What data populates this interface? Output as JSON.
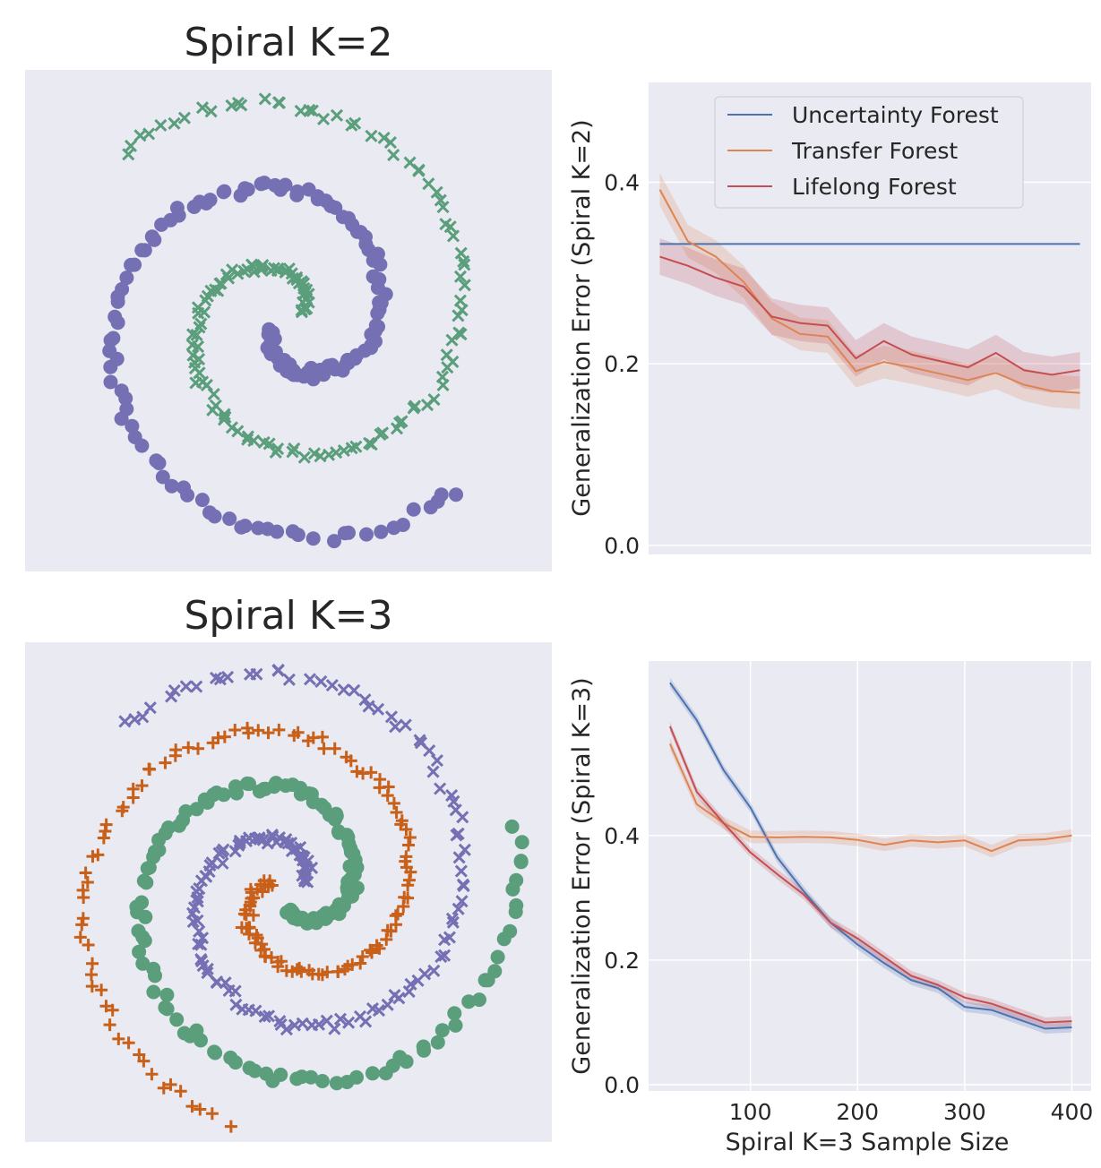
{
  "colors": {
    "panel_bg": "#EAEAF2",
    "grid": "#FFFFFF",
    "purple": "#7570B3",
    "green": "#5A9E7C",
    "orange": "#C8601A",
    "uncertainty": "#4C72B0",
    "transfer": "#DD8452",
    "lifelong": "#C44E52"
  },
  "chart_data": [
    {
      "type": "scatter",
      "title": "Spiral K=2",
      "xlabel": "",
      "ylabel": "",
      "grid": false,
      "series": [
        {
          "marker": "circle",
          "color_key": "purple",
          "arms": 1,
          "phase_deg": 180
        },
        {
          "marker": "x",
          "color_key": "green",
          "arms": 1,
          "phase_deg": 0
        }
      ]
    },
    {
      "type": "line",
      "xlabel": "",
      "ylabel": "Generalization Error (Spiral K=2)",
      "yticks": [
        0.0,
        0.2,
        0.4
      ],
      "ylim": [
        -0.01,
        0.51
      ],
      "xlim": [
        15,
        410
      ],
      "legend": {
        "placement": "top-center",
        "labels": [
          "Uncertainty Forest",
          "Transfer Forest",
          "Lifelong Forest"
        ]
      },
      "x": [
        25,
        50,
        75,
        100,
        125,
        150,
        175,
        200,
        225,
        250,
        275,
        300,
        325,
        350,
        375,
        400
      ],
      "series": [
        {
          "name": "Uncertainty Forest",
          "color_key": "uncertainty",
          "values": [
            0.332,
            0.332,
            0.332,
            0.332,
            0.332,
            0.332,
            0.332,
            0.332,
            0.332,
            0.332,
            0.332,
            0.332,
            0.332,
            0.332,
            0.332,
            0.332
          ],
          "band": 0.0
        },
        {
          "name": "Transfer Forest",
          "color_key": "transfer",
          "values": [
            0.392,
            0.335,
            0.318,
            0.29,
            0.25,
            0.233,
            0.23,
            0.192,
            0.202,
            0.196,
            0.189,
            0.182,
            0.19,
            0.177,
            0.17,
            0.168
          ],
          "band": 0.018
        },
        {
          "name": "Lifelong Forest",
          "color_key": "lifelong",
          "values": [
            0.318,
            0.308,
            0.295,
            0.285,
            0.252,
            0.245,
            0.242,
            0.206,
            0.225,
            0.21,
            0.203,
            0.196,
            0.212,
            0.193,
            0.188,
            0.193
          ],
          "band": 0.02
        }
      ]
    },
    {
      "type": "scatter",
      "title": "Spiral K=3",
      "xlabel": "",
      "ylabel": "",
      "grid": false,
      "series": [
        {
          "marker": "circle",
          "color_key": "green",
          "arms": 1,
          "phase_deg": 120
        },
        {
          "marker": "plus",
          "color_key": "orange",
          "arms": 1,
          "phase_deg": 240
        },
        {
          "marker": "x",
          "color_key": "purple",
          "arms": 1,
          "phase_deg": 0
        }
      ]
    },
    {
      "type": "line",
      "xlabel": "Spiral K=3 Sample Size",
      "ylabel": "Generalization Error (Spiral K=3)",
      "xticks": [
        100,
        200,
        300,
        400
      ],
      "yticks": [
        0.0,
        0.2,
        0.4
      ],
      "ylim": [
        -0.01,
        0.68
      ],
      "xlim": [
        5,
        418
      ],
      "x": [
        25,
        50,
        75,
        100,
        125,
        150,
        175,
        200,
        225,
        250,
        275,
        300,
        325,
        350,
        375,
        400
      ],
      "series": [
        {
          "name": "Uncertainty Forest",
          "color_key": "uncertainty",
          "values": [
            0.645,
            0.585,
            0.505,
            0.445,
            0.365,
            0.31,
            0.26,
            0.225,
            0.195,
            0.168,
            0.155,
            0.125,
            0.12,
            0.105,
            0.09,
            0.092
          ],
          "band": 0.008
        },
        {
          "name": "Transfer Forest",
          "color_key": "transfer",
          "values": [
            0.547,
            0.45,
            0.42,
            0.398,
            0.397,
            0.398,
            0.397,
            0.393,
            0.385,
            0.392,
            0.389,
            0.392,
            0.375,
            0.392,
            0.394,
            0.4
          ],
          "band": 0.01
        },
        {
          "name": "Lifelong Forest",
          "color_key": "lifelong",
          "values": [
            0.575,
            0.47,
            0.42,
            0.373,
            0.338,
            0.305,
            0.26,
            0.235,
            0.205,
            0.175,
            0.16,
            0.14,
            0.13,
            0.115,
            0.1,
            0.102
          ],
          "band": 0.008
        }
      ]
    }
  ]
}
